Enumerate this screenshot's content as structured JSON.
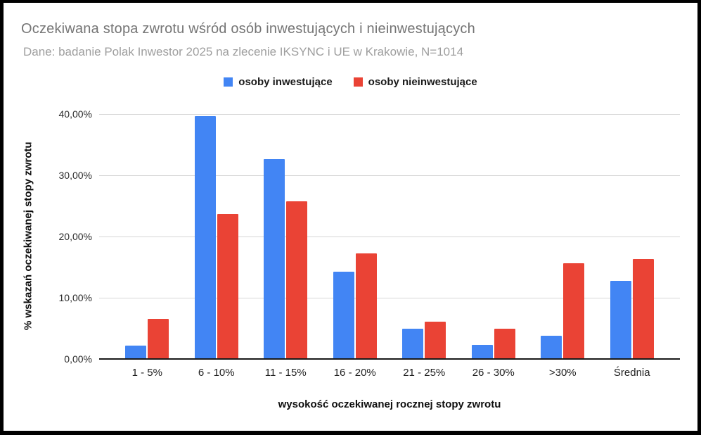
{
  "window": {
    "background": "#ffffff",
    "frame_border_color": "#000000"
  },
  "legend": {
    "position": "top-center"
  },
  "chart_data": {
    "type": "bar",
    "title": "Oczekiwana stopa zwrotu wśród osób inwestujących i nieinwestujących",
    "subtitle": "Dane: badanie Polak Inwestor 2025 na zlecenie IKSYNC i UE w Krakowie, N=1014",
    "categories": [
      "1 - 5%",
      "6 - 10%",
      "11 - 15%",
      "16 - 20%",
      "21 - 25%",
      "26 - 30%",
      ">30%",
      "Średnia"
    ],
    "series": [
      {
        "id": "investing",
        "name": "osoby inwestujące",
        "color": "#4285F4",
        "values": [
          2.2,
          39.7,
          32.6,
          14.2,
          5.0,
          2.3,
          3.8,
          12.8
        ]
      },
      {
        "id": "noninvesting",
        "name": "osoby nieinwestujące",
        "color": "#EA4335",
        "values": [
          6.5,
          23.7,
          25.7,
          17.3,
          6.1,
          4.9,
          15.6,
          16.3
        ]
      }
    ],
    "xlabel": "wysokość oczekiwanej rocznej stopy zwrotu",
    "ylabel": "% wskazań oczekiwanej stopy zwrotu",
    "ylim": [
      0,
      40
    ],
    "y_ticks": [
      {
        "label": "40,00%",
        "value": 40
      },
      {
        "label": "30,00%",
        "value": 30
      },
      {
        "label": "20,00%",
        "value": 20
      },
      {
        "label": "10,00%",
        "value": 10
      },
      {
        "label": "0,00%",
        "value": 0
      }
    ],
    "grid": true,
    "gridline_color": "#d6d6d6",
    "legend_position": "top",
    "title_color": "#757575",
    "subtitle_color": "#9e9e9e"
  }
}
